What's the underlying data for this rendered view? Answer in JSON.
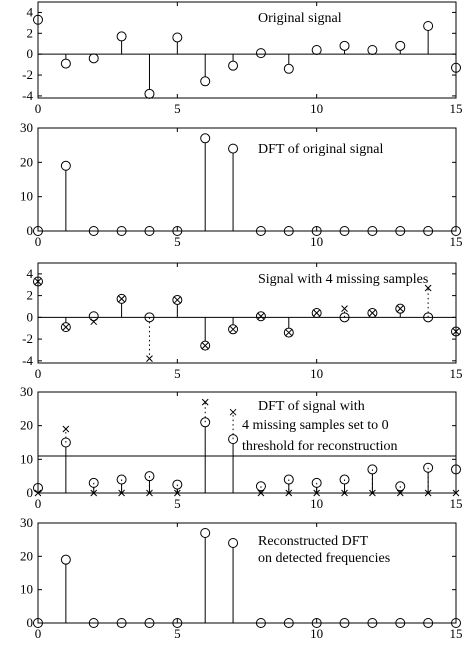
{
  "chart_data": [
    {
      "type": "stem",
      "title": "",
      "xlabel": "",
      "ylabel": "",
      "xlim": [
        0,
        15
      ],
      "ylim": [
        -4.2,
        5
      ],
      "yticks": [
        -4,
        -2,
        0,
        2,
        4
      ],
      "xticks": [
        0,
        5,
        10,
        15
      ],
      "annotations": [
        "Original signal"
      ],
      "series": [
        {
          "marker": "circle",
          "x": [
            0,
            1,
            2,
            3,
            4,
            5,
            6,
            7,
            8,
            9,
            10,
            11,
            12,
            13,
            14,
            15
          ],
          "y": [
            3.3,
            -0.9,
            -0.4,
            1.7,
            -3.8,
            1.6,
            -2.6,
            -1.1,
            0.1,
            -1.4,
            0.4,
            0.8,
            0.4,
            0.8,
            2.7,
            -1.3
          ]
        }
      ]
    },
    {
      "type": "stem",
      "title": "",
      "xlabel": "",
      "ylabel": "",
      "xlim": [
        0,
        15
      ],
      "ylim": [
        0,
        30
      ],
      "yticks": [
        0,
        10,
        20,
        30
      ],
      "xticks": [
        0,
        5,
        10,
        15
      ],
      "annotations": [
        "DFT of original signal"
      ],
      "series": [
        {
          "marker": "circle",
          "x": [
            0,
            1,
            2,
            3,
            4,
            5,
            6,
            7,
            8,
            9,
            10,
            11,
            12,
            13,
            14,
            15
          ],
          "y": [
            0,
            19,
            0,
            0,
            0,
            0,
            27,
            24,
            0,
            0,
            0,
            0,
            0,
            0,
            0,
            0
          ]
        }
      ]
    },
    {
      "type": "stem",
      "title": "",
      "xlabel": "",
      "ylabel": "",
      "xlim": [
        0,
        15
      ],
      "ylim": [
        -4.2,
        5
      ],
      "yticks": [
        -4,
        -2,
        0,
        2,
        4
      ],
      "xticks": [
        0,
        5,
        10,
        15
      ],
      "annotations": [
        "Signal with 4 missing samples"
      ],
      "series": [
        {
          "marker": "circle",
          "x": [
            0,
            1,
            2,
            3,
            4,
            5,
            6,
            7,
            8,
            9,
            10,
            11,
            12,
            13,
            14,
            15
          ],
          "y": [
            3.3,
            -0.9,
            0.1,
            1.7,
            0,
            1.6,
            -2.6,
            -1.1,
            0.1,
            -1.4,
            0.4,
            0,
            0.4,
            0.8,
            0,
            -1.3
          ]
        },
        {
          "marker": "cross",
          "x": [
            0,
            1,
            2,
            3,
            4,
            5,
            6,
            7,
            8,
            9,
            10,
            11,
            12,
            13,
            14,
            15
          ],
          "y": [
            3.3,
            -0.9,
            -0.4,
            1.7,
            -3.8,
            1.6,
            -2.6,
            -1.1,
            0.1,
            -1.4,
            0.4,
            0.8,
            0.4,
            0.8,
            2.7,
            -1.3
          ]
        }
      ]
    },
    {
      "type": "stem",
      "title": "",
      "xlabel": "",
      "ylabel": "",
      "xlim": [
        0,
        15
      ],
      "ylim": [
        0,
        30
      ],
      "yticks": [
        0,
        10,
        20,
        30
      ],
      "xticks": [
        0,
        5,
        10,
        15
      ],
      "threshold": 11,
      "annotations": [
        "DFT of signal with",
        "4 missing samples set to 0",
        "threshold for reconstruction"
      ],
      "series": [
        {
          "marker": "circle",
          "x": [
            0,
            1,
            2,
            3,
            4,
            5,
            6,
            7,
            8,
            9,
            10,
            11,
            12,
            13,
            14,
            15
          ],
          "y": [
            1.5,
            15,
            3,
            4,
            5,
            2.5,
            21,
            16,
            2,
            4,
            3,
            4,
            7,
            2,
            7.5,
            7
          ]
        },
        {
          "marker": "cross",
          "x": [
            0,
            1,
            2,
            3,
            4,
            5,
            6,
            7,
            8,
            9,
            10,
            11,
            12,
            13,
            14,
            15
          ],
          "y": [
            0,
            19,
            0,
            0,
            0,
            0,
            27,
            24,
            0,
            0,
            0,
            0,
            0,
            0,
            0,
            0
          ]
        }
      ]
    },
    {
      "type": "stem",
      "title": "",
      "xlabel": "",
      "ylabel": "",
      "xlim": [
        0,
        15
      ],
      "ylim": [
        0,
        30
      ],
      "yticks": [
        0,
        10,
        20,
        30
      ],
      "xticks": [
        0,
        5,
        10,
        15
      ],
      "annotations": [
        "Reconstructed DFT",
        "on detected frequencies"
      ],
      "series": [
        {
          "marker": "circle",
          "x": [
            0,
            1,
            2,
            3,
            4,
            5,
            6,
            7,
            8,
            9,
            10,
            11,
            12,
            13,
            14,
            15
          ],
          "y": [
            0,
            19,
            0,
            0,
            0,
            0,
            27,
            24,
            0,
            0,
            0,
            0,
            0,
            0,
            0,
            0
          ]
        }
      ]
    }
  ]
}
